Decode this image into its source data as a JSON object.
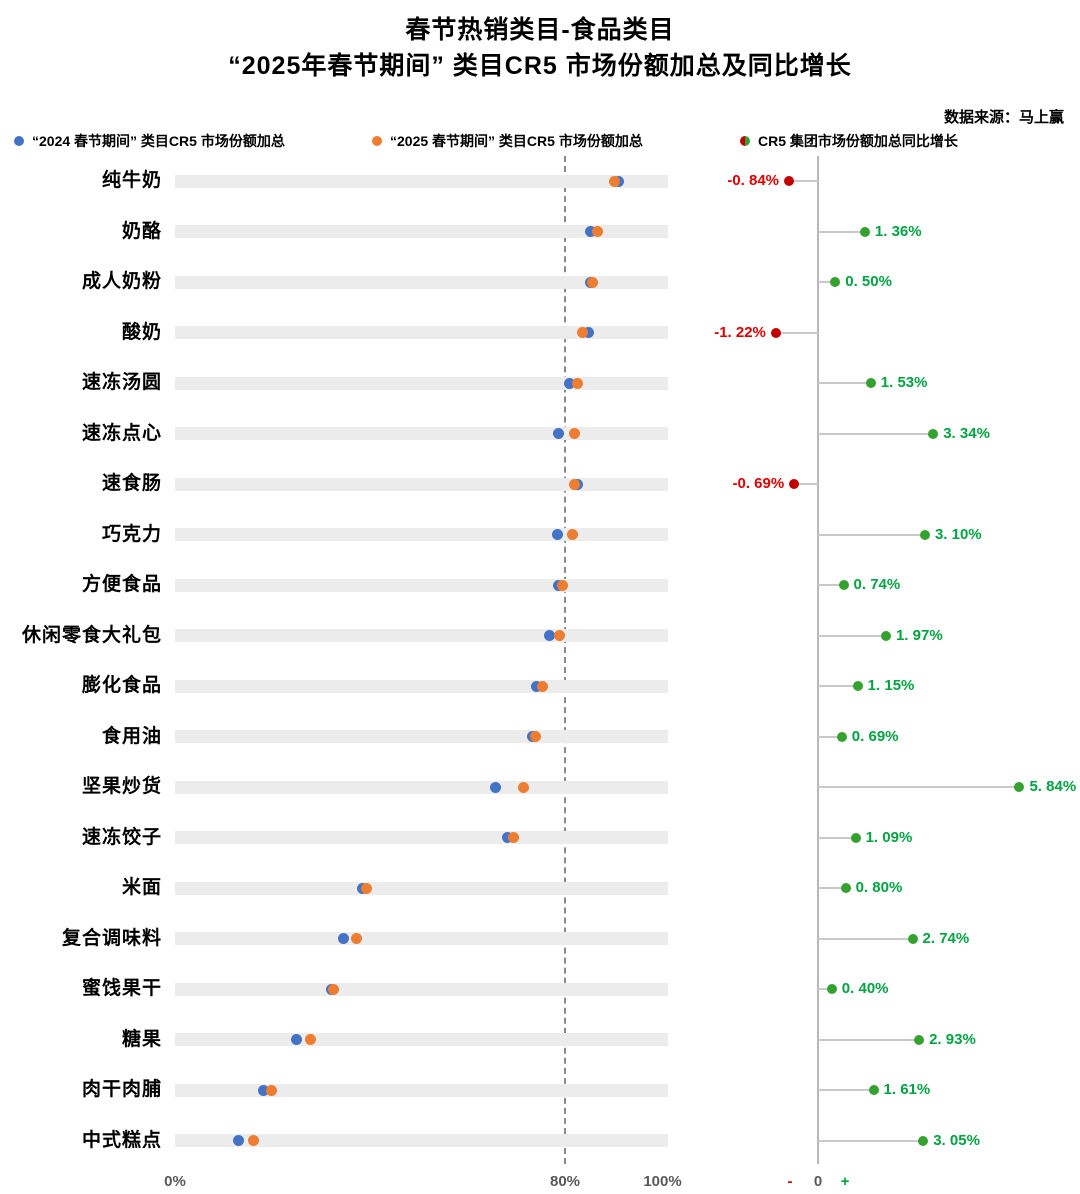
{
  "header": {
    "title_line1": "春节热销类目-食品类目",
    "title_line2": "“2025年春节期间” 类目CR5 市场份额加总及同比增长",
    "source": "数据来源：马上赢"
  },
  "legend": {
    "s2024": "“2024 春节期间” 类目CR5 市场份额加总",
    "s2025": "“2025 春节期间” 类目CR5 市场份额加总",
    "growth": "CR5 集团市场份额加总同比增长"
  },
  "colors": {
    "blue": "#4472C4",
    "orange": "#ED7D31",
    "green_dot": "#35A12F",
    "green_text": "#00A440",
    "red_dot": "#C00000",
    "red_text": "#E00000",
    "track": "#ececec",
    "stem": "#c9c9c9"
  },
  "chart_data": {
    "type": "dumbbell+lollipop",
    "title": "春节热销类目-食品类目 “2025年春节期间” 类目CR5 市场份额加总及同比增长",
    "categories": [
      "纯牛奶",
      "奶酪",
      "成人奶粉",
      "酸奶",
      "速冻汤圆",
      "速冻点心",
      "速食肠",
      "巧克力",
      "方便食品",
      "休闲零食大礼包",
      "膨化食品",
      "食用油",
      "坚果炒货",
      "速冻饺子",
      "米面",
      "复合调味料",
      "蜜饯果干",
      "糖果",
      "肉干肉脯",
      "中式糕点"
    ],
    "series": [
      {
        "name": "“2024 春节期间” 类目CR5 市场份额加总",
        "unit": "%",
        "values": [
          91.0,
          85.3,
          85.2,
          84.9,
          81.0,
          78.6,
          82.6,
          78.5,
          78.7,
          76.8,
          74.2,
          73.3,
          65.7,
          68.3,
          38.5,
          34.5,
          32.2,
          24.9,
          18.2,
          13.0
        ]
      },
      {
        "name": "“2025 春节期间” 类目CR5 市场份额加总",
        "unit": "%",
        "values": [
          90.16,
          86.66,
          85.7,
          83.68,
          82.53,
          81.94,
          81.91,
          81.6,
          79.44,
          78.77,
          75.35,
          73.99,
          71.54,
          69.39,
          39.3,
          37.24,
          32.6,
          27.83,
          19.81,
          16.05
        ]
      }
    ],
    "growth": {
      "name": "CR5 集团市场份额加总同比增长",
      "values": [
        -0.84,
        1.36,
        0.5,
        -1.22,
        1.53,
        3.34,
        -0.69,
        3.1,
        0.74,
        1.97,
        1.15,
        0.69,
        5.84,
        1.09,
        0.8,
        2.74,
        0.4,
        2.93,
        1.61,
        3.05
      ],
      "labels": [
        "-0. 84%",
        "1. 36%",
        "0. 50%",
        "-1. 22%",
        "1. 53%",
        "3. 34%",
        "-0. 69%",
        "3. 10%",
        "0. 74%",
        "1. 97%",
        "1. 15%",
        "0. 69%",
        "5. 84%",
        "1. 09%",
        "0. 80%",
        "2. 74%",
        "0. 40%",
        "2. 93%",
        "1. 61%",
        "3. 05%"
      ]
    },
    "left_axis": {
      "ticks": [
        "0%",
        "80%",
        "100%"
      ],
      "tick_values": [
        0,
        80,
        100
      ],
      "dashed_value": 80,
      "range": [
        0,
        100
      ]
    },
    "right_axis": {
      "minus": "-",
      "zero": "0",
      "plus": "+",
      "range": [
        -2,
        6
      ]
    },
    "legend_position": "top",
    "grid": false
  }
}
